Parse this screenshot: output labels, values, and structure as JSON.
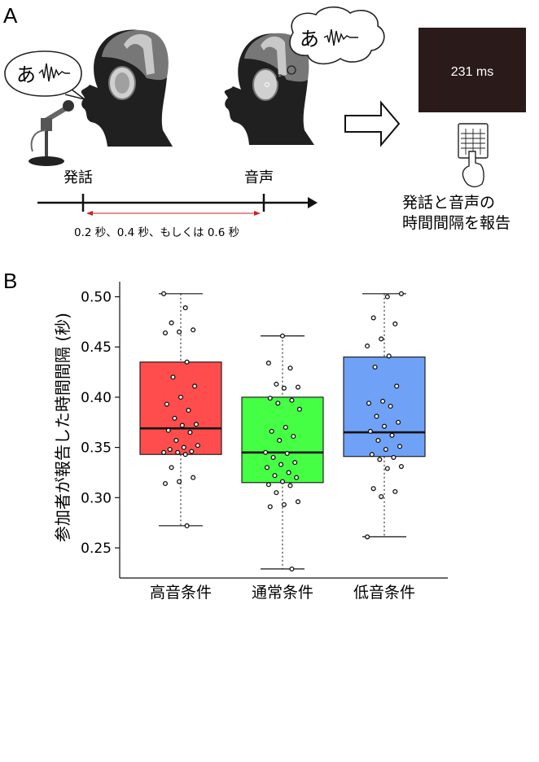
{
  "panel_a": {
    "label": "A",
    "speech_bubble_char": "あ",
    "thought_bubble_char": "あ",
    "event_speech": "発話",
    "event_sound": "音声",
    "delay_text": "0.2 秒、0.4 秒、もしくは 0.6 秒",
    "screen_text": "231 ms",
    "task_line1": "発話と音声の",
    "task_line2": "時間間隔を報告"
  },
  "panel_b": {
    "label": "B"
  },
  "colors": {
    "high": "#ff4d4d",
    "normal": "#44ff44",
    "low": "#6fa2f6",
    "screen": "#2b1a1a",
    "delay_arrow": "#cc2222"
  },
  "chart_data": {
    "type": "box",
    "ylabel": "参加者が報告した時間間隔 (秒)",
    "ylim": [
      0.22,
      0.515
    ],
    "yticks": [
      "0.25",
      "0.30",
      "0.35",
      "0.40",
      "0.45",
      "0.50"
    ],
    "categories": [
      "高音条件",
      "通常条件",
      "低音条件"
    ],
    "boxes": [
      {
        "category": "高音条件",
        "color": "#ff4d4d",
        "whisker_low": 0.272,
        "q1": 0.343,
        "median": 0.369,
        "q3": 0.435,
        "whisker_high": 0.503,
        "points": [
          0.503,
          0.489,
          0.474,
          0.467,
          0.465,
          0.464,
          0.435,
          0.42,
          0.411,
          0.4,
          0.393,
          0.387,
          0.379,
          0.373,
          0.372,
          0.367,
          0.365,
          0.357,
          0.352,
          0.35,
          0.348,
          0.346,
          0.345,
          0.345,
          0.343,
          0.33,
          0.32,
          0.316,
          0.314,
          0.272
        ]
      },
      {
        "category": "通常条件",
        "color": "#44ff44",
        "whisker_low": 0.229,
        "q1": 0.315,
        "median": 0.345,
        "q3": 0.4,
        "whisker_high": 0.461,
        "points": [
          0.461,
          0.434,
          0.429,
          0.413,
          0.41,
          0.409,
          0.399,
          0.397,
          0.394,
          0.388,
          0.37,
          0.366,
          0.361,
          0.357,
          0.345,
          0.344,
          0.34,
          0.335,
          0.333,
          0.33,
          0.325,
          0.322,
          0.32,
          0.316,
          0.313,
          0.312,
          0.305,
          0.296,
          0.293,
          0.291,
          0.229
        ]
      },
      {
        "category": "低音条件",
        "color": "#6fa2f6",
        "whisker_low": 0.261,
        "q1": 0.341,
        "median": 0.365,
        "q3": 0.44,
        "whisker_high": 0.503,
        "points": [
          0.503,
          0.5,
          0.479,
          0.473,
          0.458,
          0.451,
          0.441,
          0.43,
          0.411,
          0.396,
          0.394,
          0.391,
          0.381,
          0.375,
          0.371,
          0.366,
          0.362,
          0.357,
          0.351,
          0.348,
          0.343,
          0.34,
          0.338,
          0.331,
          0.329,
          0.309,
          0.306,
          0.301,
          0.261
        ]
      }
    ]
  }
}
